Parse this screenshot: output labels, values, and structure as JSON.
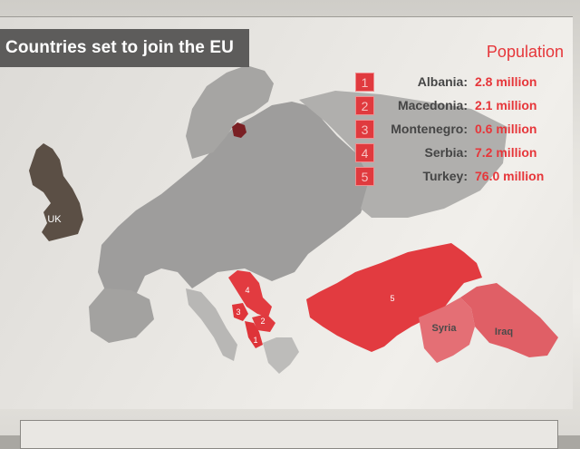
{
  "title": "Countries set to join the EU",
  "population_heading": "Population",
  "legend": [
    {
      "num": "1",
      "country": "Albania:",
      "population": "2.8 million"
    },
    {
      "num": "2",
      "country": "Macedonia:",
      "population": "2.1 million"
    },
    {
      "num": "3",
      "country": "Montenegro:",
      "population": "0.6 million"
    },
    {
      "num": "4",
      "country": "Serbia:",
      "population": "7.2 million"
    },
    {
      "num": "5",
      "country": "Turkey:",
      "population": "76.0 million"
    }
  ],
  "map_labels": {
    "uk": "UK",
    "albania": "1",
    "macedonia": "2",
    "montenegro": "3",
    "serbia": "4",
    "turkey": "5",
    "syria": "Syria",
    "iraq": "Iraq"
  },
  "colors": {
    "accent_red": "#e6363a",
    "candidate_red": "#e23b40",
    "neighbor_pink": "#e46f75",
    "land_grey": "#9e9d9c",
    "uk_brown": "#5b4f45",
    "title_bg": "#5d5c5b"
  }
}
